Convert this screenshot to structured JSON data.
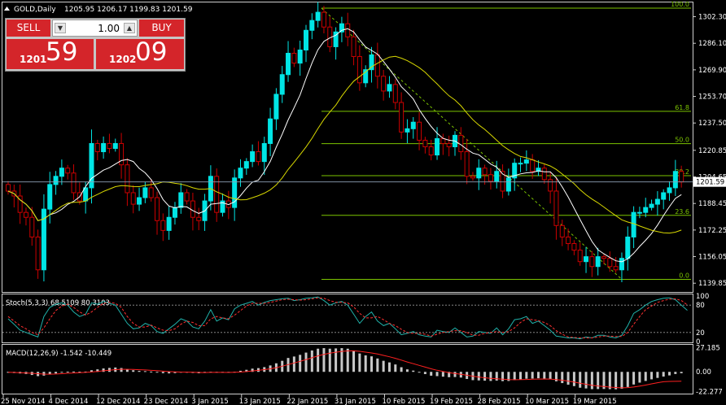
{
  "header": {
    "symbol": "GOLD,Daily",
    "ohlc": "1205.95 1206.17 1199.83 1201.59"
  },
  "trade_panel": {
    "sell_label": "SELL",
    "buy_label": "BUY",
    "quantity": "1.00",
    "sell_price_small": "1201",
    "sell_price_big": "59",
    "buy_price_small": "1202",
    "buy_price_big": "09"
  },
  "colors": {
    "bull": "#00e5e5",
    "bear": "#cc0000",
    "ma_fast": "#ffffff",
    "ma_slow": "#d8d800",
    "fibo": "#7cc400",
    "stoch_main": "#20b2aa",
    "stoch_signal": "#ff3030",
    "macd_signal": "#ff2020"
  },
  "chart_data": [
    {
      "type": "candlestick",
      "title": "GOLD,Daily",
      "ylim": [
        1135,
        1310
      ],
      "y_ticks": [
        "1302.30",
        "1286.10",
        "1269.90",
        "1253.70",
        "1237.50",
        "1220.85",
        "1204.65",
        "1188.45",
        "1172.25",
        "1156.05",
        "1139.85"
      ],
      "current_price": "1201.59",
      "x_labels": [
        "25 Nov 2014",
        "4 Dec 2014",
        "12 Dec 2014",
        "23 Dec 2014",
        "3 Jan 2015",
        "13 Jan 2015",
        "22 Jan 2015",
        "31 Jan 2015",
        "10 Feb 2015",
        "19 Feb 2015",
        "28 Feb 2015",
        "10 Mar 2015",
        "19 Mar 2015"
      ],
      "fibonacci": {
        "high": 1307.5,
        "low": 1142.2,
        "levels": [
          {
            "label": "100.0",
            "value": 1307.5
          },
          {
            "label": "61.8",
            "value": 1244.6
          },
          {
            "label": "50.0",
            "value": 1224.9
          },
          {
            "label": "38.2",
            "value": 1205.4
          },
          {
            "label": "23.6",
            "value": 1181.2
          },
          {
            "label": "0.0",
            "value": 1142.2
          }
        ]
      },
      "close": [
        1196,
        1193,
        1183,
        1180,
        1168,
        1148,
        1185,
        1200,
        1205,
        1210,
        1207,
        1195,
        1190,
        1198,
        1225,
        1220,
        1225,
        1222,
        1225,
        1212,
        1195,
        1188,
        1192,
        1198,
        1192,
        1178,
        1172,
        1180,
        1186,
        1195,
        1190,
        1180,
        1178,
        1190,
        1205,
        1183,
        1190,
        1186,
        1204,
        1210,
        1214,
        1220,
        1214,
        1225,
        1240,
        1255,
        1267,
        1280,
        1274,
        1282,
        1294,
        1300,
        1305,
        1296,
        1284,
        1293,
        1298,
        1290,
        1278,
        1262,
        1270,
        1279,
        1266,
        1257,
        1261,
        1250,
        1232,
        1234,
        1238,
        1227,
        1223,
        1218,
        1228,
        1225,
        1223,
        1230,
        1220,
        1205,
        1204,
        1210,
        1206,
        1202,
        1208,
        1196,
        1204,
        1213,
        1213,
        1215,
        1208,
        1210,
        1203,
        1196,
        1175,
        1168,
        1164,
        1160,
        1153,
        1156,
        1150,
        1156,
        1155,
        1150,
        1148,
        1155,
        1168,
        1183,
        1183,
        1186,
        1188,
        1191,
        1195,
        1198,
        1208,
        1201.59
      ],
      "ma_fast_period": 8,
      "ma_slow_period": 21
    },
    {
      "type": "line",
      "title": "Stoch(5,3,3) 68.5109 80.3103",
      "ylim": [
        0,
        100
      ],
      "y_ticks": [
        "100",
        "80",
        "20",
        "0"
      ],
      "levels": [
        80,
        20
      ],
      "series": [
        {
          "name": "%K",
          "values": [
            50,
            38,
            25,
            20,
            15,
            10,
            55,
            75,
            82,
            85,
            80,
            65,
            55,
            60,
            85,
            82,
            88,
            84,
            80,
            60,
            40,
            28,
            30,
            40,
            35,
            22,
            18,
            28,
            38,
            50,
            45,
            32,
            28,
            45,
            70,
            45,
            52,
            48,
            72,
            80,
            84,
            88,
            80,
            86,
            90,
            92,
            94,
            95,
            90,
            92,
            95,
            96,
            98,
            90,
            80,
            85,
            88,
            80,
            60,
            40,
            55,
            65,
            45,
            35,
            40,
            28,
            15,
            18,
            22,
            15,
            12,
            10,
            25,
            22,
            20,
            30,
            20,
            10,
            12,
            22,
            20,
            18,
            30,
            15,
            28,
            48,
            50,
            55,
            40,
            45,
            35,
            25,
            12,
            10,
            8,
            8,
            6,
            10,
            8,
            14,
            14,
            10,
            8,
            14,
            35,
            62,
            70,
            80,
            88,
            92,
            95,
            96,
            92,
            80,
            68.5109
          ]
        },
        {
          "name": "%D",
          "values": [
            55,
            45,
            35,
            28,
            20,
            15,
            30,
            50,
            68,
            78,
            82,
            75,
            65,
            58,
            65,
            75,
            84,
            86,
            84,
            75,
            55,
            40,
            32,
            32,
            36,
            30,
            25,
            24,
            28,
            38,
            45,
            42,
            35,
            35,
            50,
            55,
            52,
            50,
            58,
            68,
            78,
            84,
            84,
            84,
            86,
            89,
            92,
            93,
            92,
            91,
            92,
            94,
            96,
            95,
            90,
            86,
            86,
            85,
            76,
            62,
            52,
            52,
            55,
            48,
            40,
            35,
            27,
            20,
            18,
            18,
            16,
            12,
            16,
            20,
            22,
            24,
            24,
            20,
            14,
            14,
            18,
            20,
            22,
            20,
            22,
            30,
            42,
            50,
            48,
            46,
            42,
            35,
            24,
            16,
            10,
            9,
            8,
            8,
            8,
            10,
            12,
            12,
            11,
            11,
            20,
            38,
            55,
            70,
            78,
            86,
            90,
            93,
            94,
            90,
            80.3103
          ]
        }
      ]
    },
    {
      "type": "bar",
      "title": "MACD(12,26,9) -1.542 -10.449",
      "ylim": [
        -23.5,
        28.5
      ],
      "y_ticks": [
        "27.185",
        "0.00",
        "-22.277"
      ],
      "series": [
        {
          "name": "MACD",
          "values": [
            -1.0,
            -1.3,
            -1.8,
            -2.4,
            -3.5,
            -4.8,
            -4.2,
            -3.0,
            -1.8,
            -0.6,
            0.2,
            0.4,
            0.2,
            0.3,
            1.8,
            2.8,
            3.8,
            4.4,
            4.9,
            4.3,
            3.0,
            1.8,
            1.1,
            0.8,
            0.3,
            -0.6,
            -1.5,
            -1.7,
            -1.4,
            -0.8,
            -0.7,
            -1.2,
            -1.6,
            -1.2,
            0.1,
            -0.5,
            -0.6,
            -0.9,
            0.1,
            1.2,
            2.3,
            3.6,
            4.2,
            5.3,
            7.2,
            9.6,
            12.4,
            15.6,
            17.2,
            19.1,
            21.6,
            24.0,
            26.0,
            26.6,
            26.0,
            26.3,
            26.6,
            26.0,
            24.0,
            20.6,
            18.5,
            17.4,
            15.0,
            12.4,
            10.6,
            8.3,
            5.2,
            2.8,
            1.4,
            -0.7,
            -2.5,
            -4.3,
            -4.8,
            -5.4,
            -6.0,
            -5.8,
            -6.4,
            -8.0,
            -9.3,
            -9.6,
            -9.9,
            -10.2,
            -9.8,
            -10.4,
            -10.2,
            -9.2,
            -8.5,
            -7.7,
            -7.5,
            -7.2,
            -7.5,
            -8.4,
            -10.6,
            -12.6,
            -14.4,
            -16.0,
            -17.8,
            -18.6,
            -19.4,
            -19.3,
            -19.2,
            -19.4,
            -19.6,
            -18.9,
            -17.0,
            -14.2,
            -12.1,
            -10.2,
            -8.4,
            -6.8,
            -5.3,
            -4.0,
            -2.4,
            -1.542
          ]
        },
        {
          "name": "Signal",
          "values": [
            -0.5,
            -0.7,
            -0.9,
            -1.2,
            -1.6,
            -2.1,
            -2.5,
            -2.6,
            -2.4,
            -2.1,
            -1.6,
            -1.2,
            -0.9,
            -0.6,
            -0.1,
            0.5,
            1.2,
            1.9,
            2.5,
            2.9,
            2.9,
            2.7,
            2.4,
            2.1,
            1.7,
            1.3,
            0.8,
            0.3,
            0.0,
            -0.2,
            -0.3,
            -0.5,
            -0.7,
            -0.8,
            -0.6,
            -0.6,
            -0.6,
            -0.7,
            -0.5,
            -0.2,
            0.3,
            1.0,
            1.7,
            2.5,
            3.4,
            4.7,
            6.3,
            8.2,
            10.0,
            11.8,
            13.8,
            15.8,
            17.9,
            19.6,
            20.9,
            22.0,
            22.9,
            23.5,
            23.6,
            23.0,
            22.1,
            21.2,
            20.0,
            18.5,
            16.9,
            15.2,
            13.2,
            11.1,
            9.2,
            7.2,
            5.3,
            3.4,
            1.8,
            0.4,
            -0.9,
            -1.9,
            -2.8,
            -3.8,
            -4.9,
            -5.8,
            -6.6,
            -7.3,
            -7.8,
            -8.3,
            -8.7,
            -8.8,
            -8.7,
            -8.5,
            -8.3,
            -8.1,
            -8.0,
            -8.1,
            -8.6,
            -9.4,
            -10.4,
            -11.5,
            -12.8,
            -13.9,
            -15.0,
            -15.8,
            -16.5,
            -17.1,
            -17.6,
            -17.9,
            -17.7,
            -17.0,
            -16.0,
            -14.8,
            -13.5,
            -12.2,
            -11.1,
            -10.7,
            -10.6,
            -10.449
          ]
        }
      ]
    }
  ]
}
